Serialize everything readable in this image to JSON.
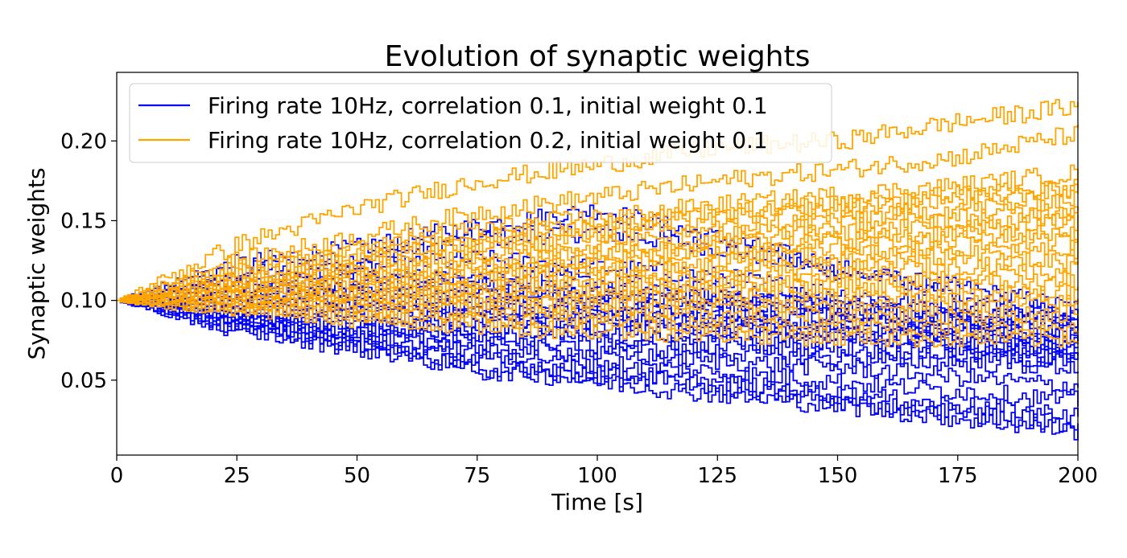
{
  "chart_data": {
    "type": "line",
    "title": "Evolution of synaptic weights",
    "xlabel": "Time [s]",
    "ylabel": "Synaptic weights",
    "xlim": [
      0,
      200
    ],
    "ylim": [
      0.003,
      0.243
    ],
    "xticks": [
      0,
      25,
      50,
      75,
      100,
      125,
      150,
      175,
      200
    ],
    "xtick_labels": [
      "0",
      "25",
      "50",
      "75",
      "100",
      "125",
      "150",
      "175",
      "200"
    ],
    "yticks": [
      0.05,
      0.1,
      0.15,
      0.2
    ],
    "ytick_labels": [
      "0.05",
      "0.10",
      "0.15",
      "0.20"
    ],
    "grid": false,
    "legend_position": "top-left",
    "series": [
      {
        "name": "Firing rate 10Hz, correlation 0.1, initial weight 0.1",
        "color": "#0000ff",
        "traces": [
          {
            "x": [
              0,
              25,
              50,
              75,
              100,
              125,
              150,
              175,
              200
            ],
            "y": [
              0.1,
              0.118,
              0.126,
              0.139,
              0.143,
              0.133,
              0.118,
              0.108,
              0.095
            ]
          },
          {
            "x": [
              0,
              25,
              50,
              75,
              100,
              125,
              150,
              175,
              200
            ],
            "y": [
              0.1,
              0.123,
              0.133,
              0.147,
              0.157,
              0.139,
              0.121,
              0.104,
              0.089
            ]
          },
          {
            "x": [
              0,
              25,
              50,
              75,
              100,
              125,
              150,
              175,
              200
            ],
            "y": [
              0.1,
              0.11,
              0.12,
              0.126,
              0.121,
              0.115,
              0.104,
              0.096,
              0.089
            ]
          },
          {
            "x": [
              0,
              25,
              50,
              75,
              100,
              125,
              150,
              175,
              200
            ],
            "y": [
              0.1,
              0.107,
              0.112,
              0.116,
              0.111,
              0.105,
              0.098,
              0.091,
              0.086
            ]
          },
          {
            "x": [
              0,
              25,
              50,
              75,
              100,
              125,
              150,
              175,
              200
            ],
            "y": [
              0.1,
              0.104,
              0.107,
              0.109,
              0.105,
              0.101,
              0.096,
              0.089,
              0.083
            ]
          },
          {
            "x": [
              0,
              25,
              50,
              75,
              100,
              125,
              150,
              175,
              200
            ],
            "y": [
              0.1,
              0.101,
              0.104,
              0.104,
              0.101,
              0.097,
              0.093,
              0.085,
              0.078
            ]
          },
          {
            "x": [
              0,
              25,
              50,
              75,
              100,
              125,
              150,
              175,
              200
            ],
            "y": [
              0.1,
              0.098,
              0.1,
              0.098,
              0.096,
              0.093,
              0.089,
              0.082,
              0.076
            ]
          },
          {
            "x": [
              0,
              25,
              50,
              75,
              100,
              125,
              150,
              175,
              200
            ],
            "y": [
              0.1,
              0.096,
              0.096,
              0.094,
              0.092,
              0.089,
              0.086,
              0.08,
              0.073
            ]
          },
          {
            "x": [
              0,
              25,
              50,
              75,
              100,
              125,
              150,
              175,
              200
            ],
            "y": [
              0.1,
              0.094,
              0.093,
              0.09,
              0.088,
              0.086,
              0.082,
              0.076,
              0.071
            ]
          },
          {
            "x": [
              0,
              25,
              50,
              75,
              100,
              125,
              150,
              175,
              200
            ],
            "y": [
              0.1,
              0.092,
              0.09,
              0.086,
              0.083,
              0.081,
              0.078,
              0.073,
              0.068
            ]
          },
          {
            "x": [
              0,
              25,
              50,
              75,
              100,
              125,
              150,
              175,
              200
            ],
            "y": [
              0.1,
              0.09,
              0.087,
              0.083,
              0.08,
              0.077,
              0.074,
              0.07,
              0.065
            ]
          },
          {
            "x": [
              0,
              25,
              50,
              75,
              100,
              125,
              150,
              175,
              200
            ],
            "y": [
              0.1,
              0.088,
              0.084,
              0.08,
              0.076,
              0.073,
              0.07,
              0.066,
              0.062
            ]
          },
          {
            "x": [
              0,
              25,
              50,
              75,
              100,
              125,
              150,
              175,
              200
            ],
            "y": [
              0.1,
              0.087,
              0.082,
              0.076,
              0.072,
              0.068,
              0.064,
              0.061,
              0.058
            ]
          },
          {
            "x": [
              0,
              25,
              50,
              75,
              100,
              125,
              150,
              175,
              200
            ],
            "y": [
              0.1,
              0.086,
              0.079,
              0.072,
              0.066,
              0.062,
              0.058,
              0.052,
              0.046
            ]
          },
          {
            "x": [
              0,
              25,
              50,
              75,
              100,
              125,
              150,
              175,
              200
            ],
            "y": [
              0.1,
              0.085,
              0.076,
              0.068,
              0.061,
              0.055,
              0.049,
              0.043,
              0.037
            ]
          },
          {
            "x": [
              0,
              25,
              50,
              75,
              100,
              125,
              150,
              175,
              200
            ],
            "y": [
              0.1,
              0.084,
              0.073,
              0.063,
              0.055,
              0.048,
              0.041,
              0.034,
              0.028
            ]
          },
          {
            "x": [
              0,
              25,
              50,
              75,
              100,
              125,
              150,
              175,
              200
            ],
            "y": [
              0.1,
              0.082,
              0.07,
              0.058,
              0.049,
              0.041,
              0.034,
              0.026,
              0.018
            ]
          },
          {
            "x": [
              0,
              25,
              50,
              75,
              100,
              125,
              150,
              175,
              200
            ],
            "y": [
              0.1,
              0.09,
              0.072,
              0.056,
              0.053,
              0.046,
              0.037,
              0.03,
              0.022
            ]
          },
          {
            "x": [
              0,
              25,
              50,
              75,
              100,
              125,
              150,
              175,
              200
            ],
            "y": [
              0.1,
              0.112,
              0.115,
              0.11,
              0.104,
              0.1,
              0.095,
              0.09,
              0.086
            ]
          },
          {
            "x": [
              0,
              25,
              50,
              75,
              100,
              125,
              150,
              175,
              200
            ],
            "y": [
              0.1,
              0.105,
              0.102,
              0.097,
              0.091,
              0.086,
              0.08,
              0.074,
              0.069
            ]
          }
        ]
      },
      {
        "name": "Firing rate 10Hz, correlation 0.2, initial weight 0.1",
        "color": "#ffa500",
        "traces": [
          {
            "x": [
              0,
              25,
              50,
              75,
              100,
              125,
              150,
              175,
              200
            ],
            "y": [
              0.1,
              0.135,
              0.158,
              0.175,
              0.185,
              0.196,
              0.2,
              0.212,
              0.222
            ]
          },
          {
            "x": [
              0,
              25,
              50,
              75,
              100,
              125,
              150,
              175,
              200
            ],
            "y": [
              0.1,
              0.125,
              0.14,
              0.155,
              0.165,
              0.175,
              0.182,
              0.19,
              0.205
            ]
          },
          {
            "x": [
              0,
              25,
              50,
              75,
              100,
              125,
              150,
              175,
              200
            ],
            "y": [
              0.1,
              0.12,
              0.132,
              0.145,
              0.152,
              0.16,
              0.166,
              0.172,
              0.18
            ]
          },
          {
            "x": [
              0,
              25,
              50,
              75,
              100,
              125,
              150,
              175,
              200
            ],
            "y": [
              0.1,
              0.117,
              0.128,
              0.138,
              0.145,
              0.152,
              0.158,
              0.164,
              0.17
            ]
          },
          {
            "x": [
              0,
              25,
              50,
              75,
              100,
              125,
              150,
              175,
              200
            ],
            "y": [
              0.1,
              0.114,
              0.124,
              0.133,
              0.14,
              0.146,
              0.152,
              0.158,
              0.164
            ]
          },
          {
            "x": [
              0,
              25,
              50,
              75,
              100,
              125,
              150,
              175,
              200
            ],
            "y": [
              0.1,
              0.112,
              0.121,
              0.129,
              0.135,
              0.141,
              0.147,
              0.152,
              0.158
            ]
          },
          {
            "x": [
              0,
              25,
              50,
              75,
              100,
              125,
              150,
              175,
              200
            ],
            "y": [
              0.1,
              0.11,
              0.118,
              0.125,
              0.131,
              0.137,
              0.142,
              0.148,
              0.154
            ]
          },
          {
            "x": [
              0,
              25,
              50,
              75,
              100,
              125,
              150,
              175,
              200
            ],
            "y": [
              0.1,
              0.108,
              0.115,
              0.121,
              0.127,
              0.133,
              0.138,
              0.143,
              0.149
            ]
          },
          {
            "x": [
              0,
              25,
              50,
              75,
              100,
              125,
              150,
              175,
              200
            ],
            "y": [
              0.1,
              0.106,
              0.112,
              0.118,
              0.123,
              0.128,
              0.133,
              0.138,
              0.144
            ]
          },
          {
            "x": [
              0,
              25,
              50,
              75,
              100,
              125,
              150,
              175,
              200
            ],
            "y": [
              0.1,
              0.105,
              0.11,
              0.114,
              0.119,
              0.124,
              0.128,
              0.133,
              0.138
            ]
          },
          {
            "x": [
              0,
              25,
              50,
              75,
              100,
              125,
              150,
              175,
              200
            ],
            "y": [
              0.1,
              0.104,
              0.107,
              0.111,
              0.115,
              0.119,
              0.123,
              0.128,
              0.132
            ]
          },
          {
            "x": [
              0,
              25,
              50,
              75,
              100,
              125,
              150,
              175,
              200
            ],
            "y": [
              0.1,
              0.102,
              0.105,
              0.108,
              0.111,
              0.114,
              0.118,
              0.122,
              0.126
            ]
          },
          {
            "x": [
              0,
              25,
              50,
              75,
              100,
              125,
              150,
              175,
              200
            ],
            "y": [
              0.1,
              0.101,
              0.103,
              0.105,
              0.108,
              0.11,
              0.113,
              0.116,
              0.119
            ]
          },
          {
            "x": [
              0,
              25,
              50,
              75,
              100,
              125,
              150,
              175,
              200
            ],
            "y": [
              0.1,
              0.1,
              0.101,
              0.102,
              0.104,
              0.106,
              0.108,
              0.11,
              0.112
            ]
          },
          {
            "x": [
              0,
              25,
              50,
              75,
              100,
              125,
              150,
              175,
              200
            ],
            "y": [
              0.1,
              0.099,
              0.099,
              0.099,
              0.1,
              0.101,
              0.102,
              0.103,
              0.105
            ]
          },
          {
            "x": [
              0,
              25,
              50,
              75,
              100,
              125,
              150,
              175,
              200
            ],
            "y": [
              0.1,
              0.098,
              0.097,
              0.096,
              0.096,
              0.096,
              0.097,
              0.098,
              0.098
            ]
          },
          {
            "x": [
              0,
              25,
              50,
              75,
              100,
              125,
              150,
              175,
              200
            ],
            "y": [
              0.1,
              0.097,
              0.094,
              0.092,
              0.091,
              0.09,
              0.09,
              0.091,
              0.092
            ]
          },
          {
            "x": [
              0,
              25,
              50,
              75,
              100,
              125,
              150,
              175,
              200
            ],
            "y": [
              0.1,
              0.096,
              0.091,
              0.088,
              0.086,
              0.084,
              0.083,
              0.082,
              0.082
            ]
          },
          {
            "x": [
              0,
              25,
              50,
              75,
              100,
              125,
              150,
              175,
              200
            ],
            "y": [
              0.1,
              0.095,
              0.088,
              0.084,
              0.081,
              0.079,
              0.077,
              0.076,
              0.076
            ]
          },
          {
            "x": [
              0,
              25,
              50,
              75,
              100,
              125,
              150,
              175,
              200
            ],
            "y": [
              0.1,
              0.112,
              0.13,
              0.14,
              0.148,
              0.155,
              0.16,
              0.166,
              0.17
            ]
          }
        ]
      }
    ]
  }
}
